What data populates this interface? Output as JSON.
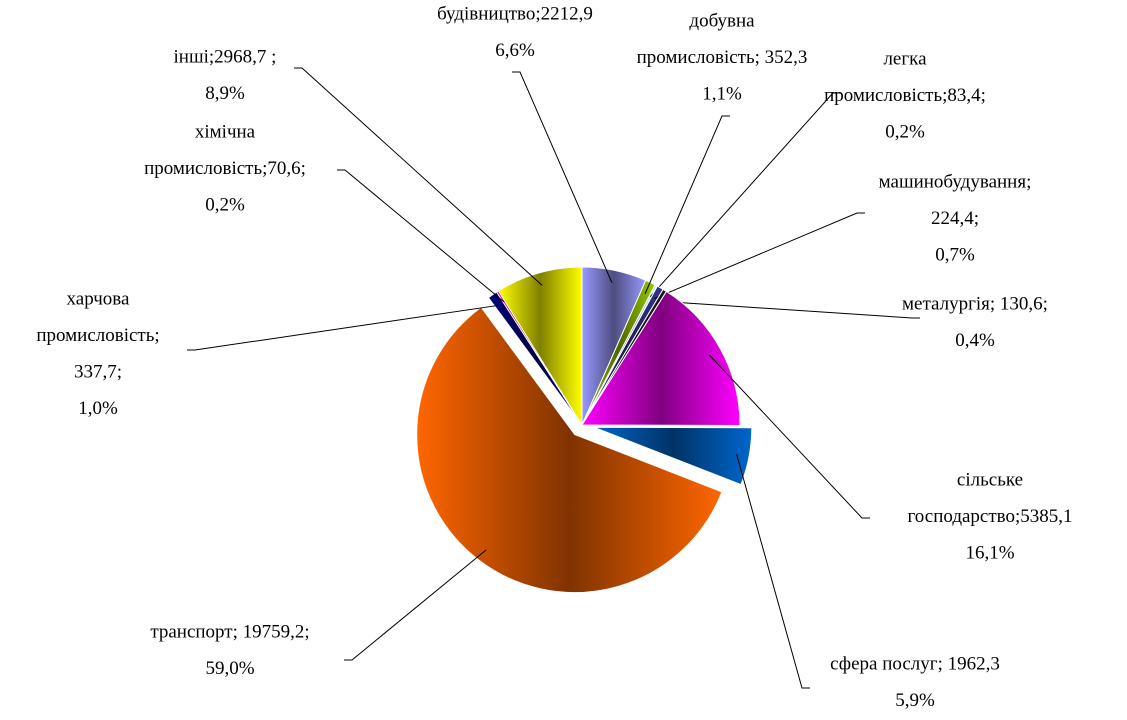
{
  "chart_data": {
    "type": "pie",
    "labels": [
      [
        "будівництво;2212,9",
        "6,6%"
      ],
      [
        "добувна",
        "промисловість; 352,3",
        "1,1%"
      ],
      [
        "легка",
        "промисловість;83,4;",
        "0,2%"
      ],
      [
        "машинобудування;",
        "224,4;",
        "0,7%"
      ],
      [
        "металургія; 130,6;",
        "0,4%"
      ],
      [
        "сільське",
        "господарство;5385,1",
        "16,1%"
      ],
      [
        "сфера послуг; 1962,3",
        "5,9%"
      ],
      [
        "транспорт; 19759,2;",
        "59,0%"
      ],
      [
        "харчова",
        "промисловість;",
        "337,7;",
        "1,0%"
      ],
      [
        "хімічна",
        "промисловість;70,6;",
        "0,2%"
      ],
      [
        "інші;2968,7 ;",
        "8,9%"
      ]
    ],
    "values": [
      2212.9,
      352.3,
      83.4,
      224.4,
      130.6,
      5385.1,
      1962.3,
      19759.2,
      337.7,
      70.6,
      2968.7
    ],
    "colors": [
      "#9999ff",
      "#99cc00",
      "#ccffff",
      "#333399",
      "#1a1a1a",
      "#ff00ff",
      "#0066cc",
      "#ff6600",
      "#000080",
      "#ff0066",
      "#ffff00"
    ],
    "exploded": [
      false,
      false,
      false,
      false,
      false,
      false,
      true,
      true,
      false,
      false,
      false
    ]
  }
}
